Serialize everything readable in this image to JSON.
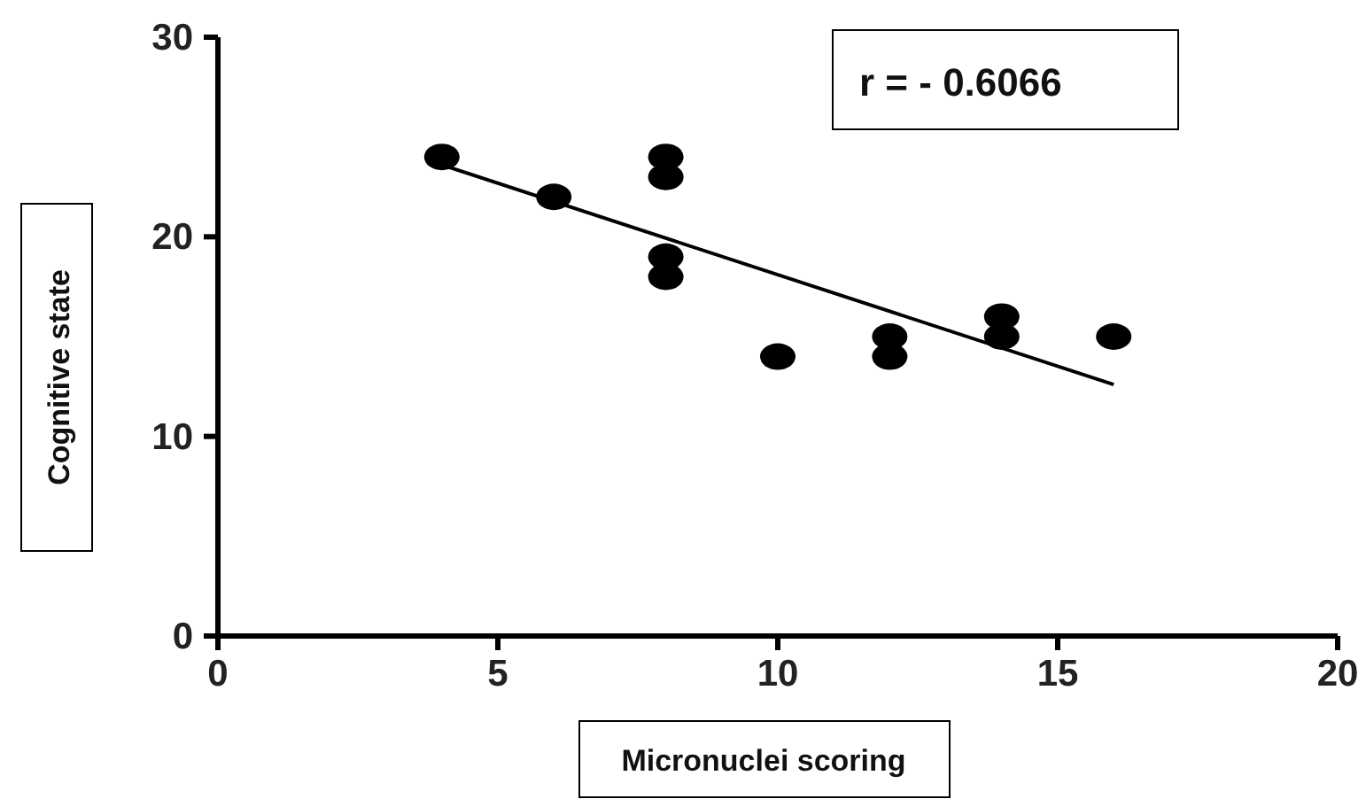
{
  "chart_data": {
    "type": "scatter",
    "xlabel": "Micronuclei scoring",
    "ylabel": "Cognitive state",
    "annotations": [
      "r = - 0.6066"
    ],
    "xlim": [
      0,
      20
    ],
    "ylim": [
      0,
      30
    ],
    "xticks": [
      0,
      5,
      10,
      15,
      20
    ],
    "yticks": [
      0,
      10,
      20,
      30
    ],
    "grid": false,
    "series": [
      {
        "type": "scatter",
        "marker": "circle",
        "color": "#000000",
        "x": [
          4,
          6,
          8,
          8,
          8,
          8,
          10,
          12,
          12,
          14,
          14,
          16
        ],
        "values": [
          24,
          22,
          24,
          23,
          19,
          18,
          14,
          15,
          14,
          16,
          15,
          15
        ]
      },
      {
        "type": "line",
        "marker": "none",
        "color": "#000000",
        "x": [
          4,
          16
        ],
        "values": [
          23.6,
          12.6
        ]
      }
    ]
  }
}
